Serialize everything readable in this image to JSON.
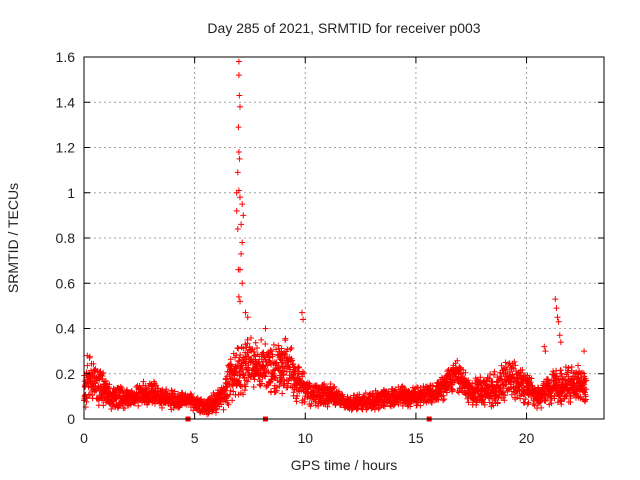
{
  "chart_data": {
    "type": "scatter",
    "title": "Day 285 of 2021, SRMTID for receiver p003",
    "xlabel": "GPS time / hours",
    "ylabel": "SRMTID / TECUs",
    "xlim": [
      0,
      23.5
    ],
    "ylim": [
      0,
      1.6
    ],
    "xticks": [
      0,
      5,
      10,
      15,
      20
    ],
    "xtick_labels": [
      "0",
      "5",
      "10",
      "15",
      "20"
    ],
    "yticks": [
      0,
      0.2,
      0.4,
      0.6,
      0.8,
      1,
      1.2,
      1.4,
      1.6
    ],
    "ytick_labels": [
      "0",
      "0.2",
      "0.4",
      "0.6",
      "0.8",
      "1",
      "1.2",
      "1.4",
      "1.6"
    ],
    "grid": true,
    "marker": "+",
    "series_color": "#ff0000",
    "gap_markers_x": [
      4.7,
      8.2,
      15.6
    ],
    "series": [
      {
        "name": "SRMTID p003",
        "profile": [
          {
            "x": 0.0,
            "y": 0.12,
            "spread": 0.07
          },
          {
            "x": 0.3,
            "y": 0.18,
            "spread": 0.09
          },
          {
            "x": 0.7,
            "y": 0.15,
            "spread": 0.08
          },
          {
            "x": 1.2,
            "y": 0.1,
            "spread": 0.05
          },
          {
            "x": 2.0,
            "y": 0.09,
            "spread": 0.04
          },
          {
            "x": 3.0,
            "y": 0.12,
            "spread": 0.05
          },
          {
            "x": 4.0,
            "y": 0.08,
            "spread": 0.04
          },
          {
            "x": 4.7,
            "y": 0.08,
            "spread": 0.03
          },
          {
            "x": 5.5,
            "y": 0.05,
            "spread": 0.03
          },
          {
            "x": 6.3,
            "y": 0.1,
            "spread": 0.06
          },
          {
            "x": 6.7,
            "y": 0.2,
            "spread": 0.1
          },
          {
            "x": 7.5,
            "y": 0.25,
            "spread": 0.12
          },
          {
            "x": 8.3,
            "y": 0.22,
            "spread": 0.1
          },
          {
            "x": 9.2,
            "y": 0.23,
            "spread": 0.12
          },
          {
            "x": 10.0,
            "y": 0.12,
            "spread": 0.07
          },
          {
            "x": 11.0,
            "y": 0.11,
            "spread": 0.05
          },
          {
            "x": 12.0,
            "y": 0.07,
            "spread": 0.03
          },
          {
            "x": 13.0,
            "y": 0.08,
            "spread": 0.04
          },
          {
            "x": 14.0,
            "y": 0.1,
            "spread": 0.04
          },
          {
            "x": 15.0,
            "y": 0.1,
            "spread": 0.04
          },
          {
            "x": 16.0,
            "y": 0.12,
            "spread": 0.05
          },
          {
            "x": 16.8,
            "y": 0.2,
            "spread": 0.06
          },
          {
            "x": 17.5,
            "y": 0.12,
            "spread": 0.05
          },
          {
            "x": 18.5,
            "y": 0.13,
            "spread": 0.07
          },
          {
            "x": 19.5,
            "y": 0.18,
            "spread": 0.09
          },
          {
            "x": 20.5,
            "y": 0.1,
            "spread": 0.05
          },
          {
            "x": 21.5,
            "y": 0.15,
            "spread": 0.08
          },
          {
            "x": 22.7,
            "y": 0.14,
            "spread": 0.08
          }
        ],
        "peaks": [
          {
            "x": 7.0,
            "y": 1.58
          },
          {
            "x": 7.0,
            "y": 1.52
          },
          {
            "x": 7.02,
            "y": 1.43
          },
          {
            "x": 7.05,
            "y": 1.38
          },
          {
            "x": 6.98,
            "y": 1.29
          },
          {
            "x": 7.0,
            "y": 1.18
          },
          {
            "x": 7.03,
            "y": 1.15
          },
          {
            "x": 6.95,
            "y": 1.09
          },
          {
            "x": 6.9,
            "y": 1.0
          },
          {
            "x": 7.0,
            "y": 1.01
          },
          {
            "x": 7.05,
            "y": 0.98
          },
          {
            "x": 7.15,
            "y": 0.95
          },
          {
            "x": 7.2,
            "y": 0.9
          },
          {
            "x": 6.9,
            "y": 0.92
          },
          {
            "x": 7.1,
            "y": 0.86
          },
          {
            "x": 6.95,
            "y": 0.84
          },
          {
            "x": 7.15,
            "y": 0.78
          },
          {
            "x": 7.1,
            "y": 0.73
          },
          {
            "x": 6.98,
            "y": 0.66
          },
          {
            "x": 7.05,
            "y": 0.66
          },
          {
            "x": 7.15,
            "y": 0.6
          },
          {
            "x": 7.0,
            "y": 0.54
          },
          {
            "x": 7.05,
            "y": 0.52
          },
          {
            "x": 7.3,
            "y": 0.47
          },
          {
            "x": 7.4,
            "y": 0.45
          },
          {
            "x": 9.85,
            "y": 0.47
          },
          {
            "x": 9.9,
            "y": 0.44
          },
          {
            "x": 8.2,
            "y": 0.4
          },
          {
            "x": 21.3,
            "y": 0.53
          },
          {
            "x": 21.35,
            "y": 0.49
          },
          {
            "x": 21.4,
            "y": 0.45
          },
          {
            "x": 21.45,
            "y": 0.43
          },
          {
            "x": 21.5,
            "y": 0.37
          },
          {
            "x": 21.55,
            "y": 0.34
          },
          {
            "x": 20.8,
            "y": 0.32
          },
          {
            "x": 20.85,
            "y": 0.3
          },
          {
            "x": 22.6,
            "y": 0.3
          },
          {
            "x": 0.15,
            "y": 0.28
          },
          {
            "x": 0.25,
            "y": 0.27
          }
        ]
      }
    ]
  }
}
